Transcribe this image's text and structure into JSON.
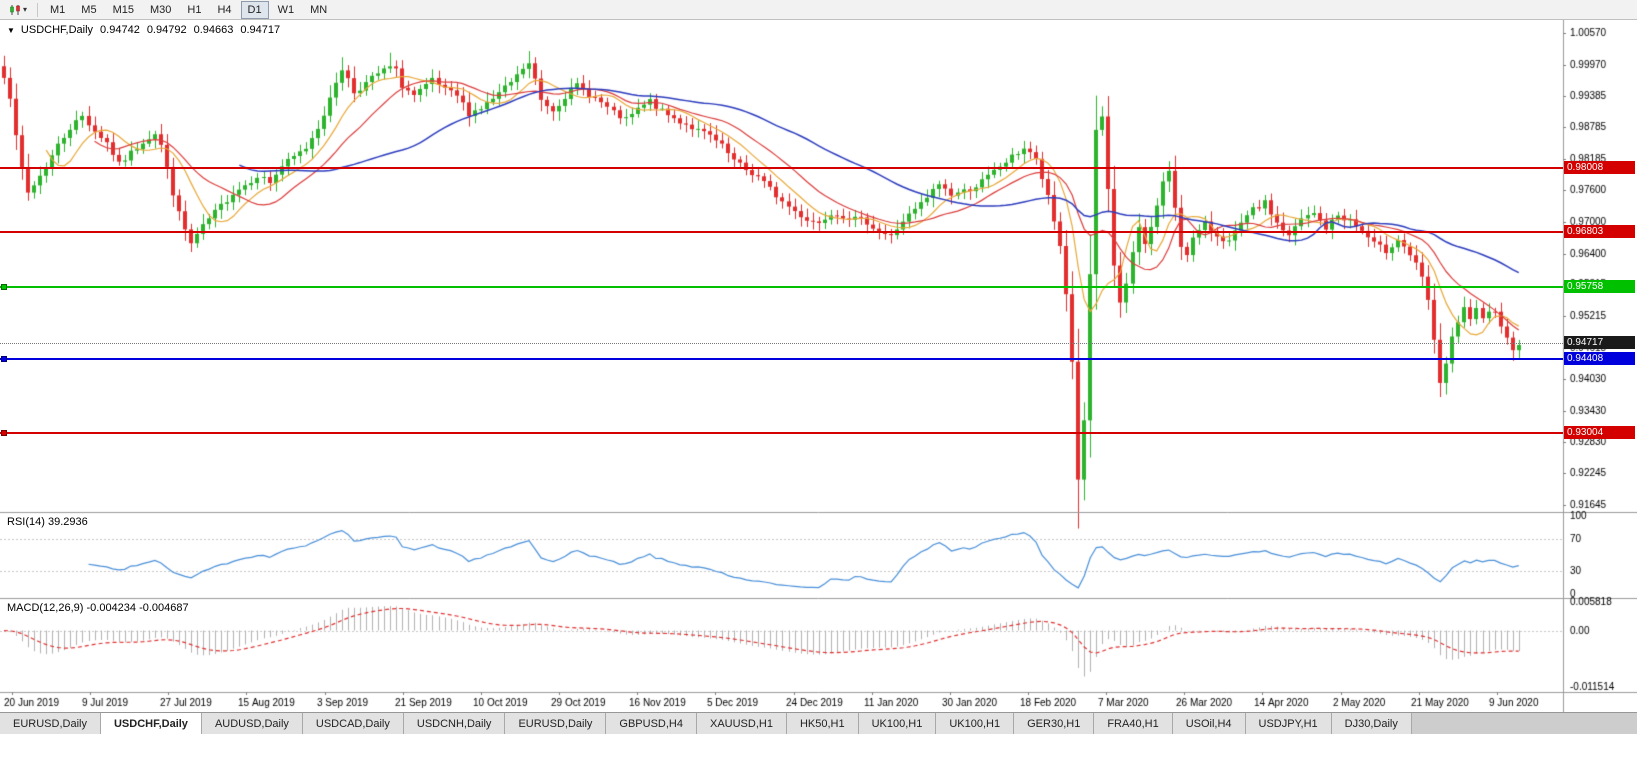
{
  "toolbar": {
    "timeframes": [
      "M1",
      "M5",
      "M15",
      "M30",
      "H1",
      "H4",
      "D1",
      "W1",
      "MN"
    ],
    "active_timeframe": "D1"
  },
  "chart_data": {
    "type": "candlestick",
    "title": "USDCHF,Daily",
    "ohlc_current": {
      "open": "0.94742",
      "high": "0.94792",
      "low": "0.94663",
      "close": "0.94717"
    },
    "ylim": [
      0.91645,
      1.0057
    ],
    "y_ticks": [
      "1.00570",
      "0.99970",
      "0.99385",
      "0.98785",
      "0.98185",
      "0.97600",
      "0.97000",
      "0.96400",
      "0.95815",
      "0.95215",
      "0.94615",
      "0.94030",
      "0.93430",
      "0.92830",
      "0.92245",
      "0.91645"
    ],
    "x_labels": [
      "20 Jun 2019",
      "9 Jul 2019",
      "27 Jul 2019",
      "15 Aug 2019",
      "3 Sep 2019",
      "21 Sep 2019",
      "10 Oct 2019",
      "29 Oct 2019",
      "16 Nov 2019",
      "5 Dec 2019",
      "24 Dec 2019",
      "11 Jan 2020",
      "30 Jan 2020",
      "18 Feb 2020",
      "7 Mar 2020",
      "26 Mar 2020",
      "14 Apr 2020",
      "2 May 2020",
      "21 May 2020",
      "9 Jun 2020"
    ],
    "candle_count": 252,
    "price_anchors": [
      [
        0,
        0.9978
      ],
      [
        1,
        0.9938
      ],
      [
        2,
        0.9858
      ],
      [
        3,
        0.98
      ],
      [
        4,
        0.9755
      ],
      [
        5,
        0.977
      ],
      [
        7,
        0.9805
      ],
      [
        9,
        0.9845
      ],
      [
        11,
        0.9878
      ],
      [
        13,
        0.99
      ],
      [
        15,
        0.9872
      ],
      [
        17,
        0.985
      ],
      [
        19,
        0.9808
      ],
      [
        21,
        0.983
      ],
      [
        23,
        0.9852
      ],
      [
        25,
        0.9868
      ],
      [
        26,
        0.9845
      ],
      [
        27,
        0.98
      ],
      [
        28,
        0.9755
      ],
      [
        29,
        0.9715
      ],
      [
        30,
        0.9685
      ],
      [
        31,
        0.9658
      ],
      [
        32,
        0.9675
      ],
      [
        34,
        0.9705
      ],
      [
        36,
        0.973
      ],
      [
        38,
        0.9755
      ],
      [
        40,
        0.977
      ],
      [
        42,
        0.9788
      ],
      [
        44,
        0.9775
      ],
      [
        46,
        0.9805
      ],
      [
        48,
        0.9822
      ],
      [
        50,
        0.984
      ],
      [
        52,
        0.988
      ],
      [
        54,
        0.993
      ],
      [
        55,
        0.9965
      ],
      [
        56,
        0.999
      ],
      [
        57,
        0.997
      ],
      [
        58,
        0.9945
      ],
      [
        60,
        0.9962
      ],
      [
        62,
        0.998
      ],
      [
        64,
        0.9992
      ],
      [
        65,
        0.9985
      ],
      [
        66,
        0.9958
      ],
      [
        68,
        0.9938
      ],
      [
        70,
        0.9955
      ],
      [
        71,
        0.9968
      ],
      [
        73,
        0.9948
      ],
      [
        75,
        0.9938
      ],
      [
        77,
        0.9906
      ],
      [
        79,
        0.9915
      ],
      [
        81,
        0.9932
      ],
      [
        83,
        0.9952
      ],
      [
        85,
        0.9975
      ],
      [
        86,
        0.999
      ],
      [
        87,
        0.9998
      ],
      [
        88,
        0.9968
      ],
      [
        89,
        0.993
      ],
      [
        91,
        0.9912
      ],
      [
        93,
        0.9938
      ],
      [
        95,
        0.9958
      ],
      [
        97,
        0.9942
      ],
      [
        99,
        0.9925
      ],
      [
        101,
        0.9905
      ],
      [
        103,
        0.9892
      ],
      [
        105,
        0.9912
      ],
      [
        107,
        0.9928
      ],
      [
        109,
        0.9908
      ],
      [
        111,
        0.9895
      ],
      [
        113,
        0.9885
      ],
      [
        115,
        0.9872
      ],
      [
        117,
        0.9862
      ],
      [
        119,
        0.9842
      ],
      [
        121,
        0.9815
      ],
      [
        123,
        0.9798
      ],
      [
        125,
        0.9785
      ],
      [
        127,
        0.9762
      ],
      [
        129,
        0.9738
      ],
      [
        131,
        0.972
      ],
      [
        133,
        0.9705
      ],
      [
        135,
        0.9698
      ],
      [
        137,
        0.9718
      ],
      [
        139,
        0.9712
      ],
      [
        141,
        0.9705
      ],
      [
        143,
        0.97
      ],
      [
        145,
        0.9682
      ],
      [
        147,
        0.9672
      ],
      [
        149,
        0.9702
      ],
      [
        151,
        0.9722
      ],
      [
        153,
        0.9745
      ],
      [
        155,
        0.9772
      ],
      [
        157,
        0.9752
      ],
      [
        159,
        0.9758
      ],
      [
        161,
        0.9768
      ],
      [
        163,
        0.9785
      ],
      [
        165,
        0.9805
      ],
      [
        167,
        0.9822
      ],
      [
        169,
        0.984
      ],
      [
        170,
        0.9832
      ],
      [
        171,
        0.9815
      ],
      [
        172,
        0.9782
      ],
      [
        173,
        0.9745
      ],
      [
        174,
        0.97
      ],
      [
        175,
        0.9655
      ],
      [
        176,
        0.9565
      ],
      [
        177,
        0.9435
      ],
      [
        178,
        0.9215
      ],
      [
        179,
        0.932
      ],
      [
        180,
        0.96
      ],
      [
        181,
        0.9868
      ],
      [
        182,
        0.9895
      ],
      [
        183,
        0.9762
      ],
      [
        184,
        0.9618
      ],
      [
        185,
        0.9545
      ],
      [
        186,
        0.9578
      ],
      [
        187,
        0.9642
      ],
      [
        188,
        0.9688
      ],
      [
        189,
        0.9662
      ],
      [
        190,
        0.9688
      ],
      [
        191,
        0.9732
      ],
      [
        192,
        0.9775
      ],
      [
        193,
        0.9792
      ],
      [
        194,
        0.9728
      ],
      [
        195,
        0.9655
      ],
      [
        196,
        0.9642
      ],
      [
        197,
        0.9668
      ],
      [
        199,
        0.9695
      ],
      [
        201,
        0.9675
      ],
      [
        203,
        0.9662
      ],
      [
        205,
        0.9695
      ],
      [
        207,
        0.9722
      ],
      [
        209,
        0.9735
      ],
      [
        211,
        0.9698
      ],
      [
        213,
        0.9672
      ],
      [
        215,
        0.9705
      ],
      [
        217,
        0.9715
      ],
      [
        219,
        0.9688
      ],
      [
        221,
        0.9712
      ],
      [
        223,
        0.9702
      ],
      [
        225,
        0.9682
      ],
      [
        227,
        0.9658
      ],
      [
        229,
        0.9645
      ],
      [
        231,
        0.9668
      ],
      [
        233,
        0.9638
      ],
      [
        234,
        0.9618
      ],
      [
        235,
        0.9592
      ],
      [
        236,
        0.9552
      ],
      [
        237,
        0.9472
      ],
      [
        238,
        0.9398
      ],
      [
        239,
        0.9432
      ],
      [
        240,
        0.9478
      ],
      [
        241,
        0.9508
      ],
      [
        242,
        0.9535
      ],
      [
        243,
        0.9518
      ],
      [
        244,
        0.9532
      ],
      [
        245,
        0.9512
      ],
      [
        246,
        0.9526
      ],
      [
        247,
        0.9536
      ],
      [
        248,
        0.9506
      ],
      [
        249,
        0.9478
      ],
      [
        250,
        0.9462
      ],
      [
        251,
        0.9472
      ]
    ],
    "moving_averages": {
      "fast_period": 8,
      "mid_period": 16,
      "slow_period": 40
    },
    "levels": [
      {
        "value": 0.98008,
        "label": "0.98008",
        "color": "#d40000",
        "handle": false
      },
      {
        "value": 0.96803,
        "label": "0.96803",
        "color": "#d40000",
        "handle": false
      },
      {
        "value": 0.95758,
        "label": "0.95758",
        "color": "#00c000",
        "handle": true
      },
      {
        "value": 0.94408,
        "label": "0.94408",
        "color": "#0000dc",
        "handle": true
      },
      {
        "value": 0.93004,
        "label": "0.93004",
        "color": "#d40000",
        "handle": true
      }
    ],
    "current_price": {
      "value": 0.94717,
      "label": "0.94717"
    },
    "indicators": {
      "rsi": {
        "label": "RSI(14)",
        "value": "39.2936",
        "period": 14,
        "axis_labels": [
          "100",
          "70",
          "30",
          "0"
        ],
        "guide_levels": [
          70,
          30
        ]
      },
      "macd": {
        "label": "MACD(12,26,9)",
        "value_main": "-0.004234",
        "value_signal": "-0.004687",
        "fast": 12,
        "slow": 26,
        "signal": 9,
        "ylim": [
          -0.011514,
          0.005818
        ],
        "y_ticks": [
          "0.005818",
          "0.00",
          "-0.011514"
        ]
      }
    }
  },
  "tabs": [
    {
      "label": "EURUSD,Daily",
      "active": false
    },
    {
      "label": "USDCHF,Daily",
      "active": true
    },
    {
      "label": "AUDUSD,Daily",
      "active": false
    },
    {
      "label": "USDCAD,Daily",
      "active": false
    },
    {
      "label": "USDCNH,Daily",
      "active": false
    },
    {
      "label": "EURUSD,Daily",
      "active": false
    },
    {
      "label": "GBPUSD,H4",
      "active": false
    },
    {
      "label": "XAUUSD,H1",
      "active": false
    },
    {
      "label": "HK50,H1",
      "active": false
    },
    {
      "label": "UK100,H1",
      "active": false
    },
    {
      "label": "UK100,H1",
      "active": false
    },
    {
      "label": "GER30,H1",
      "active": false
    },
    {
      "label": "FRA40,H1",
      "active": false
    },
    {
      "label": "USOil,H4",
      "active": false
    },
    {
      "label": "USDJPY,H1",
      "active": false
    },
    {
      "label": "DJ30,Daily",
      "active": false
    }
  ],
  "colors": {
    "candle_up": "#2db32d",
    "candle_down": "#e22e2e",
    "ma_fast": "#e8a838",
    "ma_mid": "#dc3c3c",
    "ma_slow": "#2c3cbe",
    "rsi_line": "#4a90d9",
    "macd_hist": "#b2b2b2",
    "macd_signal": "#e03232",
    "bid_badge_bg": "#1a1a1a",
    "axis_line": "#9a9a9a",
    "guide_dotted": "#c8c8c8"
  }
}
